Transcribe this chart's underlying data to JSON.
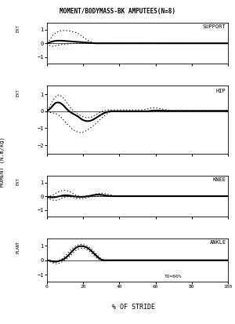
{
  "title": "MOMENT/BODYMASS-BK AMPUTEES(N=8)",
  "ylabel": "MOMENT (N.m/kg)",
  "xlabel": "% OF STRIDE",
  "subplots": [
    {
      "label": "SUPPORT",
      "ylim": [
        -1.5,
        1.5
      ],
      "yticks": [
        -1,
        0,
        1
      ],
      "side_label": "EXT",
      "mean_line": [
        0.0,
        0.04,
        0.09,
        0.13,
        0.16,
        0.18,
        0.19,
        0.19,
        0.19,
        0.18,
        0.17,
        0.16,
        0.15,
        0.14,
        0.13,
        0.12,
        0.11,
        0.1,
        0.09,
        0.08,
        0.07,
        0.06,
        0.05,
        0.04,
        0.03,
        0.02,
        0.01,
        0.0,
        0.0,
        0.0,
        0.0,
        0.0,
        0.0,
        0.0,
        0.0,
        0.0,
        0.0,
        0.0,
        0.0,
        0.0,
        0.0,
        0.0,
        0.0,
        0.0,
        0.0,
        0.0,
        0.0,
        0.0,
        0.0,
        0.0,
        0.0,
        0.0,
        0.0,
        0.0,
        0.0,
        0.0,
        0.0,
        0.0,
        0.0,
        0.0,
        0.0,
        0.0,
        0.0,
        0.0,
        0.0,
        0.0,
        0.0,
        0.0,
        0.0,
        0.0,
        0.0,
        0.0,
        0.0,
        0.0,
        0.0,
        0.0,
        0.0,
        0.0,
        0.0,
        0.0,
        0.0,
        0.0,
        0.0,
        0.0,
        0.0,
        0.0,
        0.0,
        0.0,
        0.0,
        0.0,
        0.0,
        0.0,
        0.0,
        0.0,
        0.0,
        0.0,
        0.0,
        0.0,
        0.0,
        0.0,
        0.0
      ],
      "upper_std": [
        0.02,
        0.15,
        0.35,
        0.55,
        0.68,
        0.78,
        0.85,
        0.9,
        0.92,
        0.93,
        0.93,
        0.92,
        0.9,
        0.88,
        0.85,
        0.82,
        0.78,
        0.72,
        0.65,
        0.55,
        0.45,
        0.35,
        0.25,
        0.18,
        0.12,
        0.08,
        0.05,
        0.03,
        0.02,
        0.02,
        0.02,
        0.02,
        0.02,
        0.02,
        0.02,
        0.02,
        0.02,
        0.02,
        0.02,
        0.02,
        0.02,
        0.02,
        0.02,
        0.02,
        0.02,
        0.02,
        0.02,
        0.02,
        0.02,
        0.02,
        0.02,
        0.02,
        0.02,
        0.02,
        0.02,
        0.02,
        0.02,
        0.02,
        0.02,
        0.02,
        0.02,
        0.02,
        0.02,
        0.02,
        0.02,
        0.02,
        0.02,
        0.02,
        0.02,
        0.02,
        0.02,
        0.02,
        0.02,
        0.02,
        0.02,
        0.02,
        0.02,
        0.02,
        0.02,
        0.02,
        0.02,
        0.02,
        0.02,
        0.02,
        0.02,
        0.02,
        0.02,
        0.02,
        0.02,
        0.02,
        0.02,
        0.02,
        0.02,
        0.02,
        0.02,
        0.02,
        0.02,
        0.02,
        0.02,
        0.02,
        0.02
      ],
      "lower_std": [
        0.0,
        -0.12,
        -0.2,
        -0.22,
        -0.2,
        -0.17,
        -0.14,
        -0.11,
        -0.09,
        -0.07,
        -0.06,
        -0.05,
        -0.04,
        -0.03,
        -0.02,
        -0.01,
        0.0,
        0.0,
        0.0,
        0.0,
        0.0,
        0.0,
        0.0,
        0.0,
        0.0,
        0.0,
        0.0,
        0.0,
        0.0,
        0.0,
        0.0,
        0.0,
        0.0,
        0.0,
        0.0,
        0.0,
        0.0,
        0.0,
        0.0,
        0.0,
        0.0,
        0.0,
        0.0,
        0.0,
        0.0,
        0.0,
        0.0,
        0.0,
        0.0,
        0.0,
        0.0,
        0.0,
        0.0,
        0.0,
        0.0,
        0.0,
        0.0,
        0.0,
        0.0,
        0.0,
        -0.02,
        -0.02,
        -0.02,
        -0.02,
        -0.02,
        -0.02,
        -0.02,
        -0.02,
        -0.02,
        -0.02,
        -0.02,
        -0.02,
        -0.02,
        -0.02,
        -0.02,
        -0.02,
        -0.02,
        -0.02,
        -0.02,
        -0.02,
        -0.02,
        -0.02,
        -0.02,
        -0.02,
        -0.02,
        -0.02,
        -0.02,
        -0.02,
        -0.02,
        -0.02,
        -0.02,
        -0.02,
        -0.02,
        -0.02,
        -0.02,
        -0.02,
        -0.02,
        -0.02,
        -0.02,
        -0.02,
        -0.02
      ]
    },
    {
      "label": "HIP",
      "ylim": [
        -2.5,
        1.5
      ],
      "yticks": [
        -2,
        -1,
        0,
        1
      ],
      "side_label": "EXT",
      "mean_line": [
        0.02,
        0.08,
        0.18,
        0.3,
        0.42,
        0.5,
        0.52,
        0.5,
        0.44,
        0.35,
        0.24,
        0.12,
        0.02,
        -0.06,
        -0.12,
        -0.18,
        -0.24,
        -0.3,
        -0.38,
        -0.46,
        -0.52,
        -0.56,
        -0.58,
        -0.58,
        -0.56,
        -0.52,
        -0.46,
        -0.4,
        -0.33,
        -0.26,
        -0.2,
        -0.14,
        -0.09,
        -0.05,
        -0.02,
        0.0,
        0.0,
        0.0,
        0.0,
        0.0,
        0.0,
        0.0,
        0.0,
        0.0,
        0.0,
        0.0,
        0.0,
        0.0,
        0.0,
        0.0,
        0.0,
        0.0,
        0.0,
        0.0,
        0.0,
        0.0,
        0.0,
        0.02,
        0.03,
        0.04,
        0.04,
        0.04,
        0.04,
        0.03,
        0.03,
        0.03,
        0.02,
        0.02,
        0.02,
        0.02,
        0.02,
        0.02,
        0.02,
        0.02,
        0.02,
        0.02,
        0.02,
        0.02,
        0.02,
        0.02,
        0.02,
        0.02,
        0.02,
        0.02,
        0.02,
        0.02,
        0.02,
        0.02,
        0.02,
        0.02,
        0.02,
        0.02,
        0.02,
        0.02,
        0.02,
        0.02,
        0.02,
        0.02,
        0.02,
        0.02,
        0.02
      ],
      "upper_std": [
        0.08,
        0.2,
        0.38,
        0.58,
        0.75,
        0.88,
        0.95,
        0.95,
        0.88,
        0.78,
        0.65,
        0.5,
        0.36,
        0.22,
        0.1,
        0.0,
        -0.08,
        -0.15,
        -0.22,
        -0.28,
        -0.33,
        -0.36,
        -0.38,
        -0.38,
        -0.36,
        -0.32,
        -0.26,
        -0.2,
        -0.14,
        -0.08,
        -0.03,
        0.02,
        0.05,
        0.07,
        0.08,
        0.08,
        0.08,
        0.08,
        0.08,
        0.08,
        0.08,
        0.08,
        0.08,
        0.08,
        0.08,
        0.08,
        0.08,
        0.08,
        0.08,
        0.08,
        0.08,
        0.08,
        0.08,
        0.08,
        0.1,
        0.12,
        0.15,
        0.18,
        0.2,
        0.2,
        0.2,
        0.18,
        0.16,
        0.14,
        0.12,
        0.1,
        0.08,
        0.06,
        0.05,
        0.04,
        0.04,
        0.04,
        0.04,
        0.04,
        0.04,
        0.04,
        0.04,
        0.04,
        0.04,
        0.04,
        0.04,
        0.04,
        0.04,
        0.04,
        0.04,
        0.04,
        0.04,
        0.04,
        0.04,
        0.04,
        0.04,
        0.04,
        0.04,
        0.04,
        0.04,
        0.04,
        0.04,
        0.04,
        0.04,
        0.04,
        0.04
      ],
      "lower_std": [
        -0.04,
        -0.06,
        -0.08,
        -0.1,
        -0.12,
        -0.15,
        -0.2,
        -0.28,
        -0.38,
        -0.5,
        -0.62,
        -0.75,
        -0.85,
        -0.95,
        -1.05,
        -1.12,
        -1.18,
        -1.22,
        -1.25,
        -1.25,
        -1.22,
        -1.18,
        -1.12,
        -1.05,
        -0.98,
        -0.9,
        -0.82,
        -0.72,
        -0.62,
        -0.52,
        -0.42,
        -0.33,
        -0.24,
        -0.16,
        -0.1,
        -0.04,
        -0.01,
        0.0,
        0.0,
        0.0,
        0.0,
        0.0,
        0.0,
        0.0,
        0.0,
        0.0,
        0.0,
        0.0,
        0.0,
        0.0,
        0.0,
        0.0,
        0.0,
        0.0,
        0.0,
        0.0,
        0.0,
        0.0,
        0.0,
        0.0,
        0.0,
        0.0,
        0.0,
        0.0,
        0.0,
        0.0,
        0.0,
        0.0,
        0.0,
        0.0,
        0.0,
        0.0,
        0.0,
        0.0,
        0.0,
        0.0,
        0.0,
        0.0,
        0.0,
        0.0,
        0.0,
        0.0,
        0.0,
        0.0,
        0.0,
        0.0,
        0.0,
        0.0,
        0.0,
        0.0,
        0.0,
        0.0,
        0.0,
        0.0,
        0.0,
        0.0,
        0.0,
        0.0,
        0.0,
        0.0,
        0.0
      ]
    },
    {
      "label": "KNEE",
      "ylim": [
        -1.5,
        1.5
      ],
      "yticks": [
        -1,
        0,
        1
      ],
      "side_label": "EXT",
      "mean_line": [
        -0.04,
        -0.07,
        -0.09,
        -0.09,
        -0.08,
        -0.06,
        -0.03,
        0.0,
        0.03,
        0.05,
        0.06,
        0.06,
        0.05,
        0.03,
        0.01,
        -0.01,
        -0.03,
        -0.04,
        -0.05,
        -0.05,
        -0.04,
        -0.03,
        -0.01,
        0.01,
        0.03,
        0.06,
        0.08,
        0.1,
        0.11,
        0.11,
        0.1,
        0.08,
        0.06,
        0.04,
        0.02,
        0.01,
        0.0,
        0.0,
        0.0,
        0.0,
        0.0,
        0.0,
        0.0,
        0.0,
        0.0,
        0.0,
        0.0,
        0.0,
        0.0,
        0.0,
        0.0,
        0.0,
        0.0,
        0.0,
        0.0,
        0.0,
        0.0,
        0.0,
        0.0,
        0.0,
        0.0,
        0.0,
        0.0,
        0.0,
        0.0,
        0.0,
        0.0,
        0.0,
        0.0,
        0.0,
        0.0,
        0.0,
        0.0,
        0.0,
        0.0,
        0.0,
        0.0,
        0.0,
        0.0,
        0.0,
        0.0,
        0.0,
        0.0,
        0.0,
        0.0,
        0.0,
        0.0,
        0.0,
        0.0,
        0.0,
        0.0,
        0.0,
        0.0,
        0.0,
        0.0,
        0.0,
        0.0,
        0.0,
        0.0,
        0.0,
        0.0
      ],
      "upper_std": [
        -0.01,
        -0.01,
        0.02,
        0.07,
        0.14,
        0.22,
        0.3,
        0.36,
        0.4,
        0.42,
        0.42,
        0.4,
        0.36,
        0.3,
        0.22,
        0.14,
        0.07,
        0.02,
        -0.02,
        -0.05,
        -0.07,
        -0.07,
        -0.05,
        -0.02,
        0.02,
        0.07,
        0.12,
        0.16,
        0.19,
        0.21,
        0.22,
        0.21,
        0.19,
        0.16,
        0.12,
        0.09,
        0.06,
        0.04,
        0.03,
        0.03,
        0.03,
        0.03,
        0.03,
        0.03,
        0.03,
        0.03,
        0.03,
        0.03,
        0.03,
        0.03,
        0.03,
        0.02,
        0.02,
        0.02,
        0.02,
        0.02,
        0.02,
        0.02,
        0.02,
        0.02,
        0.02,
        0.02,
        0.02,
        0.02,
        0.02,
        0.02,
        0.02,
        0.02,
        0.02,
        0.02,
        0.02,
        0.02,
        0.02,
        0.02,
        0.02,
        0.02,
        0.02,
        0.02,
        0.02,
        0.02,
        0.02,
        0.02,
        0.02,
        0.02,
        0.02,
        0.02,
        0.02,
        0.02,
        0.02,
        0.02,
        0.02,
        0.02,
        0.02,
        0.02,
        0.02,
        0.02,
        0.02,
        0.02,
        0.02,
        0.02,
        0.02
      ],
      "lower_std": [
        -0.12,
        -0.18,
        -0.24,
        -0.28,
        -0.3,
        -0.3,
        -0.27,
        -0.22,
        -0.16,
        -0.1,
        -0.06,
        -0.04,
        -0.04,
        -0.06,
        -0.09,
        -0.12,
        -0.15,
        -0.17,
        -0.18,
        -0.18,
        -0.17,
        -0.15,
        -0.12,
        -0.09,
        -0.06,
        -0.03,
        -0.01,
        0.0,
        0.0,
        0.0,
        0.0,
        0.0,
        -0.01,
        -0.01,
        -0.01,
        -0.01,
        -0.01,
        -0.01,
        -0.01,
        -0.01,
        -0.01,
        -0.01,
        -0.01,
        -0.01,
        -0.01,
        -0.01,
        -0.01,
        -0.01,
        -0.01,
        -0.01,
        -0.01,
        -0.01,
        -0.01,
        -0.01,
        -0.01,
        -0.01,
        -0.01,
        -0.01,
        -0.01,
        -0.01,
        -0.01,
        -0.01,
        -0.01,
        -0.01,
        -0.01,
        -0.01,
        -0.01,
        -0.01,
        -0.01,
        -0.01,
        -0.01,
        -0.01,
        -0.01,
        -0.01,
        -0.01,
        -0.01,
        -0.01,
        -0.01,
        -0.01,
        -0.01,
        -0.01,
        -0.01,
        -0.01,
        -0.01,
        -0.01,
        -0.01,
        -0.01,
        -0.01,
        -0.01,
        -0.01,
        -0.01,
        -0.01,
        -0.01,
        -0.01,
        -0.01,
        -0.01,
        -0.01,
        -0.01,
        -0.01,
        -0.01,
        -0.01
      ]
    },
    {
      "label": "ANKLE",
      "ylim": [
        -1.5,
        1.5
      ],
      "yticks": [
        -1,
        0,
        1
      ],
      "side_label": "PLANT",
      "mean_line": [
        0.0,
        -0.02,
        -0.05,
        -0.08,
        -0.1,
        -0.1,
        -0.08,
        -0.04,
        0.0,
        0.06,
        0.14,
        0.24,
        0.36,
        0.5,
        0.64,
        0.76,
        0.86,
        0.93,
        0.97,
        0.98,
        0.97,
        0.93,
        0.88,
        0.8,
        0.7,
        0.58,
        0.46,
        0.34,
        0.22,
        0.12,
        0.05,
        0.01,
        0.0,
        0.0,
        0.0,
        0.0,
        0.0,
        0.0,
        0.0,
        0.0,
        0.0,
        0.0,
        0.0,
        0.0,
        0.0,
        0.0,
        0.0,
        0.0,
        0.0,
        0.0,
        0.0,
        0.0,
        0.0,
        0.0,
        0.0,
        0.0,
        0.0,
        0.0,
        0.0,
        0.0,
        0.0,
        0.0,
        0.0,
        0.0,
        0.0,
        0.0,
        0.0,
        0.0,
        0.0,
        0.0,
        0.0,
        0.0,
        0.0,
        0.0,
        0.0,
        0.0,
        0.0,
        0.0,
        0.0,
        0.0,
        0.0,
        0.0,
        0.0,
        0.0,
        0.0,
        0.0,
        0.0,
        0.0,
        0.0,
        0.0,
        0.0,
        0.0,
        0.0,
        0.0,
        0.0,
        0.0,
        0.0,
        0.0,
        0.0,
        0.0,
        0.0
      ],
      "upper_std": [
        0.02,
        0.0,
        -0.02,
        -0.05,
        -0.07,
        -0.07,
        -0.05,
        0.0,
        0.06,
        0.16,
        0.28,
        0.42,
        0.56,
        0.7,
        0.82,
        0.92,
        1.0,
        1.06,
        1.09,
        1.1,
        1.09,
        1.06,
        1.01,
        0.94,
        0.84,
        0.72,
        0.6,
        0.46,
        0.33,
        0.2,
        0.1,
        0.03,
        0.0,
        0.0,
        0.0,
        0.0,
        0.0,
        0.0,
        0.0,
        0.0,
        0.0,
        0.0,
        0.0,
        0.0,
        0.0,
        0.0,
        0.0,
        0.0,
        0.0,
        0.0,
        0.0,
        0.0,
        0.0,
        0.0,
        0.0,
        0.0,
        0.0,
        0.0,
        0.0,
        0.0,
        0.0,
        0.0,
        0.0,
        0.0,
        0.0,
        0.0,
        0.0,
        0.0,
        0.0,
        0.0,
        0.0,
        0.0,
        0.0,
        0.0,
        0.0,
        0.0,
        0.0,
        0.0,
        0.0,
        0.0,
        0.0,
        0.0,
        0.0,
        0.0,
        0.0,
        0.0,
        0.0,
        0.0,
        0.0,
        0.0,
        0.0,
        0.0,
        0.0,
        0.0,
        0.0,
        0.0,
        0.0,
        0.0,
        0.0,
        0.0,
        0.0
      ],
      "lower_std": [
        -0.02,
        -0.06,
        -0.12,
        -0.18,
        -0.22,
        -0.24,
        -0.24,
        -0.2,
        -0.14,
        -0.06,
        0.02,
        0.1,
        0.2,
        0.32,
        0.46,
        0.58,
        0.68,
        0.76,
        0.82,
        0.84,
        0.84,
        0.8,
        0.74,
        0.66,
        0.56,
        0.44,
        0.32,
        0.2,
        0.1,
        0.03,
        -0.01,
        -0.02,
        -0.02,
        -0.02,
        -0.02,
        -0.02,
        -0.02,
        -0.02,
        -0.02,
        -0.02,
        -0.02,
        -0.02,
        -0.02,
        -0.02,
        -0.02,
        -0.02,
        -0.02,
        -0.02,
        -0.02,
        -0.02,
        -0.02,
        -0.02,
        -0.02,
        -0.02,
        -0.02,
        -0.02,
        -0.02,
        -0.02,
        -0.02,
        -0.02,
        -0.02,
        -0.02,
        -0.02,
        -0.02,
        -0.02,
        -0.02,
        -0.02,
        -0.02,
        -0.02,
        -0.02,
        -0.02,
        -0.02,
        -0.02,
        -0.02,
        -0.02,
        -0.02,
        -0.02,
        -0.02,
        -0.02,
        -0.02,
        -0.02,
        -0.02,
        -0.02,
        -0.02,
        -0.02,
        -0.02,
        -0.02,
        -0.02,
        -0.02,
        -0.02,
        -0.02,
        -0.02,
        -0.02,
        -0.02,
        -0.02,
        -0.02,
        -0.02,
        -0.02,
        -0.02,
        -0.02,
        -0.02
      ]
    }
  ],
  "to_annotation": "TO=60%",
  "to_x": 60,
  "bg_color": "#ffffff",
  "xtick_labels": [
    "0",
    "20",
    "40",
    "60",
    "80",
    "100"
  ],
  "xtick_vals": [
    0,
    20,
    40,
    60,
    80,
    100
  ]
}
